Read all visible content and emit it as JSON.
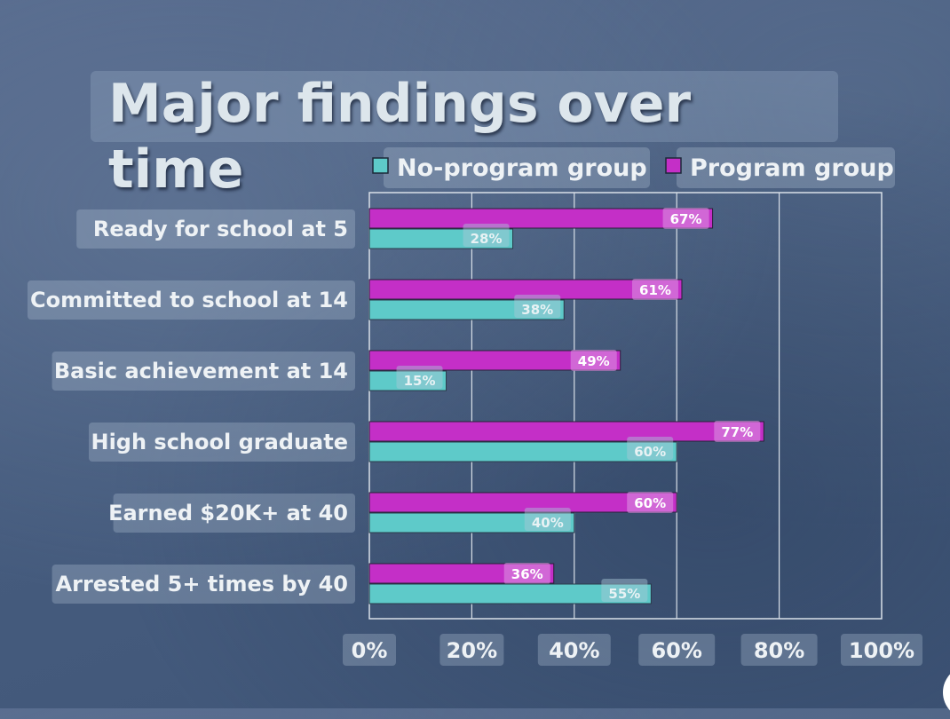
{
  "chart_data": {
    "type": "bar",
    "orientation": "horizontal",
    "title": "Major findings over time",
    "categories": [
      "Ready for school at 5",
      "Committed to school at 14",
      "Basic achievement at 14",
      "High school graduate",
      "Earned $20K+ at 40",
      "Arrested 5+ times by 40"
    ],
    "series": [
      {
        "name": "Program group",
        "color": "#c42fc7",
        "values": [
          67,
          61,
          49,
          77,
          60,
          36
        ]
      },
      {
        "name": "No-program group",
        "color": "#5ecac9",
        "values": [
          28,
          38,
          15,
          60,
          40,
          55
        ]
      }
    ],
    "legend_order": [
      "No-program group",
      "Program group"
    ],
    "xlim": [
      0,
      100
    ],
    "x_ticks": [
      "0%",
      "20%",
      "40%",
      "60%",
      "80%",
      "100%"
    ],
    "value_suffix": "%",
    "grid": true,
    "legend_position": "top"
  }
}
